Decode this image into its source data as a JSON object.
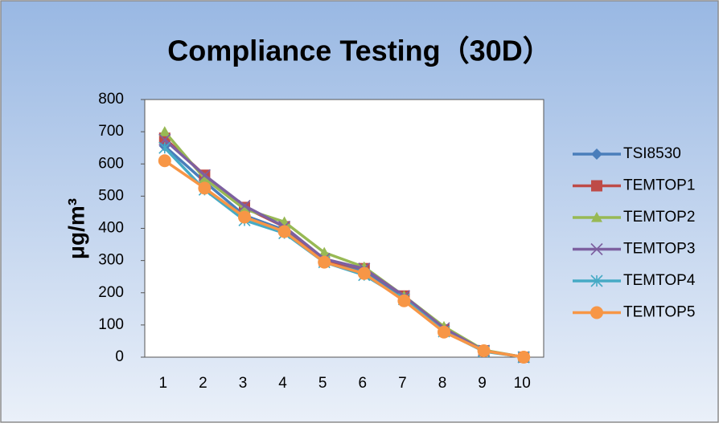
{
  "chart_data": {
    "type": "line",
    "title": "Compliance Testing（30D）",
    "y_label": "μg/m³",
    "categories": [
      "1",
      "2",
      "3",
      "4",
      "5",
      "6",
      "7",
      "8",
      "9",
      "10"
    ],
    "series": [
      {
        "name": "TSI8530",
        "color": "#4a7ebb",
        "marker": "diamond",
        "values": [
          655,
          545,
          440,
          395,
          300,
          265,
          185,
          85,
          20,
          0
        ]
      },
      {
        "name": "TEMTOP1",
        "color": "#be4b48",
        "marker": "square",
        "values": [
          680,
          565,
          465,
          405,
          300,
          275,
          190,
          85,
          20,
          0
        ]
      },
      {
        "name": "TEMTOP2",
        "color": "#98b954",
        "marker": "triangle",
        "values": [
          700,
          555,
          460,
          420,
          325,
          280,
          190,
          95,
          22,
          0
        ]
      },
      {
        "name": "TEMTOP3",
        "color": "#7d60a0",
        "marker": "x",
        "values": [
          675,
          565,
          470,
          405,
          305,
          275,
          190,
          90,
          20,
          0
        ]
      },
      {
        "name": "TEMTOP4",
        "color": "#46aac5",
        "marker": "star",
        "values": [
          650,
          520,
          425,
          385,
          295,
          255,
          180,
          80,
          18,
          0
        ]
      },
      {
        "name": "TEMTOP5",
        "color": "#f79646",
        "marker": "circle",
        "values": [
          610,
          525,
          435,
          390,
          295,
          260,
          175,
          78,
          20,
          0
        ]
      }
    ],
    "ylim": [
      0,
      800
    ],
    "yticks": [
      0,
      100,
      200,
      300,
      400,
      500,
      600,
      700,
      800
    ],
    "grid": false,
    "legend": "right"
  }
}
